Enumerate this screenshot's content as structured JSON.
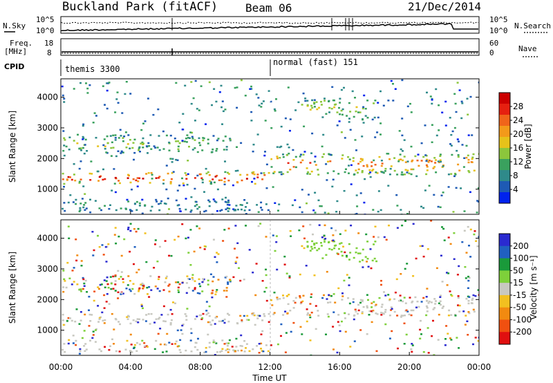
{
  "header": {
    "station": "Buckland Park (fitACF)",
    "beam": "Beam 06",
    "date": "21/Dec/2014"
  },
  "panels": {
    "nsky": {
      "label": "N.Sky",
      "tick_top": "10^5",
      "tick_bottom": "10^0"
    },
    "nsearch": {
      "label": "N.Search",
      "tick_top": "10^5",
      "tick_bottom": "10^0"
    },
    "freq": {
      "label_line1": "Freq.",
      "label_line2": "[MHz]",
      "tick_top": "18",
      "tick_bottom": "8"
    },
    "nave": {
      "label": "Nave",
      "tick_top": "60",
      "tick_bottom": "0"
    },
    "cpid": {
      "label": "CPID",
      "segments": [
        {
          "label": "themis 3300",
          "start_hour": 0
        },
        {
          "label": "normal (fast) 151",
          "start_hour": 12
        }
      ]
    }
  },
  "colors": {
    "power_scale": [
      "#0022ee",
      "#1e5ab4",
      "#2f8a8a",
      "#3aa15e",
      "#8cc63c",
      "#e6c21a",
      "#f39a1a",
      "#f0641a",
      "#e62010",
      "#cc0000"
    ],
    "velocity_scale": [
      "#2a2ad0",
      "#2060c0",
      "#1a9a3a",
      "#7ed03a",
      "#c8c8c0",
      "#f2c020",
      "#f28a10",
      "#f05010",
      "#e01010"
    ]
  },
  "chart_data": [
    {
      "type": "heatmap",
      "name": "power-panel",
      "xlabel": "",
      "ylabel": "Slant Range [km]",
      "xlim": [
        0,
        24
      ],
      "ylim": [
        180,
        4600
      ],
      "yticks": [
        "1000",
        "2000",
        "3000",
        "4000"
      ],
      "colorbar": {
        "label": "Power [dB]",
        "ticks": [
          "4",
          "8",
          "12",
          "16",
          "20",
          "24",
          "28"
        ],
        "range": [
          0,
          32
        ]
      },
      "bands": [
        {
          "t0": 0,
          "t1": 12,
          "r0": 1200,
          "r1": 1600,
          "level": 0.9
        },
        {
          "t0": 12,
          "t1": 24,
          "r0": 1500,
          "r1": 2200,
          "level": 0.75
        },
        {
          "t0": 0,
          "t1": 10,
          "r0": 2200,
          "r1": 2800,
          "level": 0.45
        },
        {
          "t0": 14,
          "t1": 18,
          "r0": 3300,
          "r1": 4000,
          "level": 0.5
        },
        {
          "t0": 0,
          "t1": 12,
          "r0": 300,
          "r1": 700,
          "level": 0.25
        }
      ]
    },
    {
      "type": "heatmap",
      "name": "velocity-panel",
      "xlabel": "Time UT",
      "ylabel": "Slant Range [km]",
      "xlim": [
        0,
        24
      ],
      "ylim": [
        180,
        4600
      ],
      "xticks": [
        "00:00",
        "04:00",
        "08:00",
        "12:00",
        "16:00",
        "20:00",
        "00:00"
      ],
      "yticks": [
        "1000",
        "2000",
        "3000",
        "4000"
      ],
      "colorbar": {
        "label": "Velocity [m s⁻¹]",
        "ticks": [
          "200",
          "100",
          "50",
          "15",
          "-15",
          "-50",
          "-100",
          "-200"
        ]
      }
    }
  ]
}
